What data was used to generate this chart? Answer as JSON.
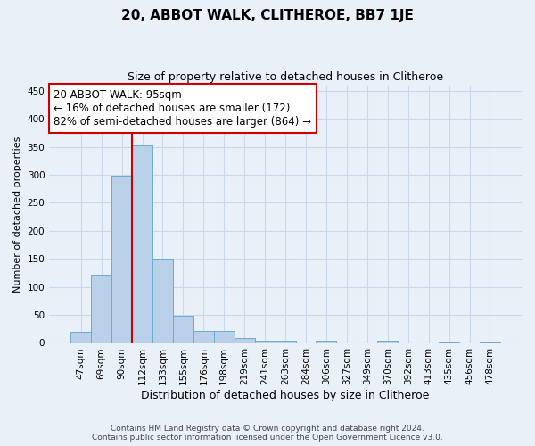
{
  "title": "20, ABBOT WALK, CLITHEROE, BB7 1JE",
  "subtitle": "Size of property relative to detached houses in Clitheroe",
  "xlabel": "Distribution of detached houses by size in Clitheroe",
  "ylabel": "Number of detached properties",
  "footer_line1": "Contains HM Land Registry data © Crown copyright and database right 2024.",
  "footer_line2": "Contains public sector information licensed under the Open Government Licence v3.0.",
  "categories": [
    "47sqm",
    "69sqm",
    "90sqm",
    "112sqm",
    "133sqm",
    "155sqm",
    "176sqm",
    "198sqm",
    "219sqm",
    "241sqm",
    "263sqm",
    "284sqm",
    "306sqm",
    "327sqm",
    "349sqm",
    "370sqm",
    "392sqm",
    "413sqm",
    "435sqm",
    "456sqm",
    "478sqm"
  ],
  "values": [
    20,
    122,
    299,
    352,
    150,
    48,
    22,
    22,
    8,
    4,
    4,
    0,
    4,
    0,
    0,
    4,
    0,
    0,
    2,
    0,
    3
  ],
  "bar_color": "#b8d0e8",
  "bar_edge_color": "#6aaad4",
  "grid_color": "#c8d8e8",
  "background_color": "#eaf0f8",
  "vline_color": "#cc0000",
  "vline_x": 2.5,
  "annotation_text": "20 ABBOT WALK: 95sqm\n← 16% of detached houses are smaller (172)\n82% of semi-detached houses are larger (864) →",
  "annotation_box_color": "#ffffff",
  "annotation_box_edge": "#cc0000",
  "ylim": [
    0,
    460
  ],
  "yticks": [
    0,
    50,
    100,
    150,
    200,
    250,
    300,
    350,
    400,
    450
  ],
  "title_fontsize": 11,
  "subtitle_fontsize": 9,
  "ylabel_fontsize": 8,
  "xlabel_fontsize": 9,
  "tick_fontsize": 7.5,
  "footer_fontsize": 6.5
}
